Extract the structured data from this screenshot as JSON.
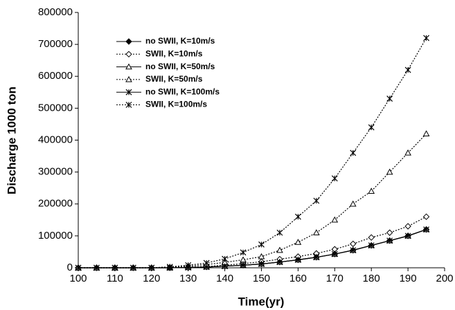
{
  "chart_data": {
    "type": "line",
    "x_label": "Time(yr)",
    "y_label": "Discharge 1000 ton",
    "x": [
      100,
      105,
      110,
      115,
      120,
      125,
      130,
      135,
      140,
      145,
      150,
      155,
      160,
      165,
      170,
      175,
      180,
      185,
      190,
      195
    ],
    "xlim": [
      100,
      200
    ],
    "xticks": [
      100,
      110,
      120,
      130,
      140,
      150,
      160,
      170,
      180,
      190,
      200
    ],
    "ylim": [
      0,
      800000
    ],
    "yticks": [
      0,
      100000,
      200000,
      300000,
      400000,
      500000,
      600000,
      700000,
      800000
    ],
    "grid": false,
    "legend": "top-left",
    "series": [
      {
        "name": "no SWII, K=10m/s",
        "color": "#000000",
        "dash": "solid",
        "marker": "diamond-filled",
        "values": [
          0,
          0,
          0,
          0,
          0,
          0,
          1000,
          2500,
          5000,
          8000,
          12000,
          18000,
          25000,
          33000,
          43000,
          55000,
          70000,
          85000,
          100000,
          120000
        ]
      },
      {
        "name": "SWII, K=10m/s",
        "color": "#000000",
        "dash": "dotted",
        "marker": "diamond-open",
        "values": [
          0,
          0,
          0,
          0,
          0,
          500,
          2000,
          4000,
          8000,
          13000,
          19000,
          27000,
          35000,
          45000,
          58000,
          75000,
          95000,
          110000,
          130000,
          160000
        ]
      },
      {
        "name": "no SWII, K=50m/s",
        "color": "#000000",
        "dash": "solid",
        "marker": "triangle-open",
        "values": [
          0,
          0,
          0,
          0,
          0,
          0,
          1000,
          2500,
          5000,
          8000,
          12000,
          18000,
          25000,
          33000,
          43000,
          55000,
          70000,
          85000,
          100000,
          120000
        ]
      },
      {
        "name": "SWII, K=50m/s",
        "color": "#000000",
        "dash": "dotted",
        "marker": "triangle-open",
        "values": [
          0,
          0,
          0,
          0,
          0,
          2000,
          5000,
          10000,
          17000,
          25000,
          35000,
          55000,
          80000,
          110000,
          150000,
          200000,
          240000,
          300000,
          360000,
          420000
        ]
      },
      {
        "name": "no SWII, K=100m/s",
        "color": "#000000",
        "dash": "solid",
        "marker": "asterisk",
        "values": [
          0,
          0,
          0,
          0,
          0,
          0,
          1000,
          2500,
          5000,
          8000,
          12000,
          18000,
          25000,
          33000,
          43000,
          55000,
          70000,
          85000,
          100000,
          120000
        ]
      },
      {
        "name": "SWII, K=100m/s",
        "color": "#000000",
        "dash": "dotted",
        "marker": "asterisk",
        "values": [
          0,
          0,
          0,
          0,
          0,
          3000,
          8000,
          15000,
          28000,
          48000,
          73000,
          110000,
          160000,
          210000,
          280000,
          360000,
          440000,
          530000,
          620000,
          720000
        ]
      }
    ]
  }
}
